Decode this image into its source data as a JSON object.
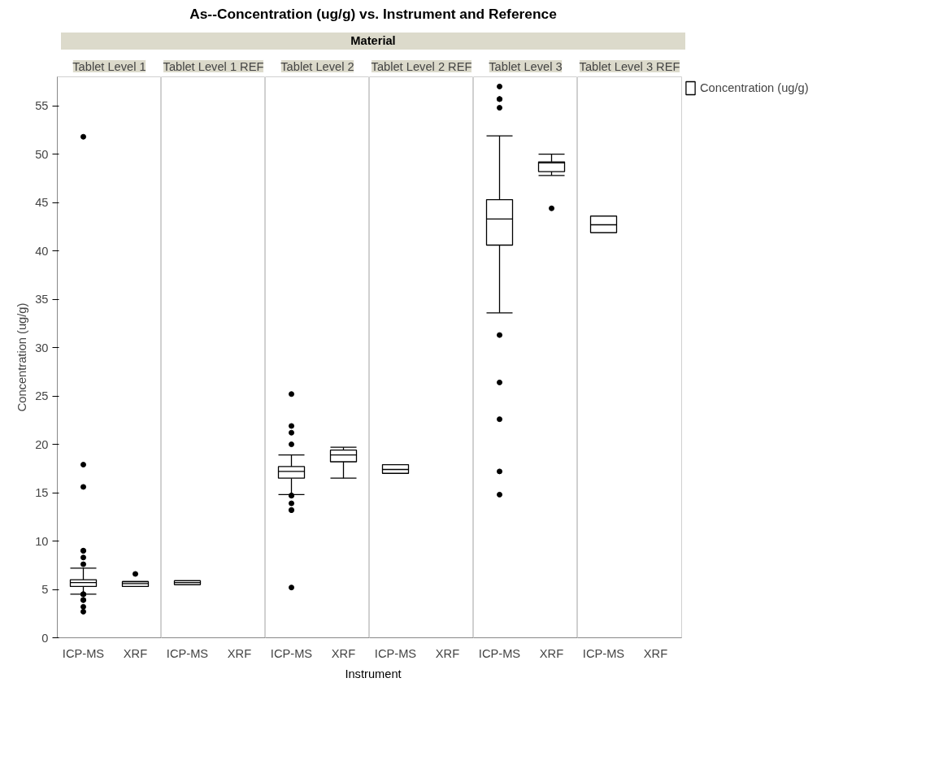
{
  "chart_data": [
    {
      "type": "box",
      "title": "Tablet Level 1",
      "ylabel": "Concentration (ug/g)",
      "annotations": [
        "As--Concentration (ug/g) vs. Instrument and Reference",
        "Material",
        "Instrument"
      ],
      "categories": [
        "ICP-MS",
        "XRF"
      ],
      "ylim": [
        0,
        58
      ],
      "yticks": [
        0,
        5,
        10,
        15,
        20,
        25,
        30,
        35,
        40,
        45,
        50,
        55
      ],
      "grid": false,
      "series": [
        {
          "color": "#000000",
          "boxes": [
            {
              "low": 4.5,
              "q1": 5.3,
              "median": 5.7,
              "q3": 6.0,
              "high": 7.2,
              "outliers": [
                51.8,
                17.9,
                15.6,
                9.0,
                9.0,
                8.3,
                7.6,
                4.5,
                4.5,
                4.5,
                3.9,
                3.9,
                3.2,
                2.7
              ]
            },
            {
              "low": 5.3,
              "q1": 5.3,
              "median": 5.6,
              "q3": 5.8,
              "high": 5.8,
              "outliers": [
                6.6
              ]
            }
          ]
        }
      ]
    },
    {
      "type": "box",
      "title": "Tablet Level 1 REF",
      "categories": [
        "ICP-MS",
        "XRF"
      ],
      "ylim": [
        0,
        58
      ],
      "yticks": [
        0,
        5,
        10,
        15,
        20,
        25,
        30,
        35,
        40,
        45,
        50,
        55
      ],
      "tick_labels": "x",
      "grid": false,
      "series": [
        {
          "color": "#000000",
          "boxes": [
            {
              "low": 5.5,
              "q1": 5.5,
              "median": 5.7,
              "q3": 5.9,
              "high": 5.9
            },
            null
          ]
        }
      ]
    },
    {
      "type": "box",
      "title": "Tablet Level 2",
      "categories": [
        "ICP-MS",
        "XRF"
      ],
      "ylim": [
        0,
        58
      ],
      "yticks": [
        0,
        5,
        10,
        15,
        20,
        25,
        30,
        35,
        40,
        45,
        50,
        55
      ],
      "tick_labels": "x",
      "grid": false,
      "series": [
        {
          "color": "#000000",
          "boxes": [
            {
              "low": 14.8,
              "q1": 16.5,
              "median": 17.2,
              "q3": 17.7,
              "high": 18.9,
              "outliers": [
                25.2,
                21.9,
                21.2,
                20.0,
                14.7,
                14.7,
                13.9,
                13.2,
                13.2,
                5.2
              ]
            },
            {
              "low": 16.5,
              "q1": 18.2,
              "median": 18.9,
              "q3": 19.4,
              "high": 19.7
            }
          ]
        }
      ]
    },
    {
      "type": "box",
      "title": "Tablet Level 2 REF",
      "categories": [
        "ICP-MS",
        "XRF"
      ],
      "ylim": [
        0,
        58
      ],
      "yticks": [
        0,
        5,
        10,
        15,
        20,
        25,
        30,
        35,
        40,
        45,
        50,
        55
      ],
      "tick_labels": "x",
      "grid": false,
      "series": [
        {
          "color": "#000000",
          "boxes": [
            {
              "low": 17.0,
              "q1": 17.0,
              "median": 17.4,
              "q3": 17.9,
              "high": 17.9
            },
            null
          ]
        }
      ]
    },
    {
      "type": "box",
      "title": "Tablet Level 3",
      "categories": [
        "ICP-MS",
        "XRF"
      ],
      "ylim": [
        0,
        58
      ],
      "yticks": [
        0,
        5,
        10,
        15,
        20,
        25,
        30,
        35,
        40,
        45,
        50,
        55
      ],
      "tick_labels": "x",
      "grid": false,
      "series": [
        {
          "color": "#000000",
          "boxes": [
            {
              "low": 33.6,
              "q1": 40.6,
              "median": 43.3,
              "q3": 45.3,
              "high": 51.9,
              "outliers": [
                57.0,
                55.7,
                55.7,
                54.8,
                31.3,
                26.4,
                22.6,
                17.2,
                14.8
              ]
            },
            {
              "low": 47.8,
              "q1": 48.2,
              "median": 49.1,
              "q3": 49.2,
              "high": 50.0,
              "outliers": [
                44.4
              ]
            }
          ]
        }
      ]
    },
    {
      "type": "box",
      "title": "Tablet Level 3 REF",
      "categories": [
        "ICP-MS",
        "XRF"
      ],
      "ylim": [
        0,
        58
      ],
      "yticks": [
        0,
        5,
        10,
        15,
        20,
        25,
        30,
        35,
        40,
        45,
        50,
        55
      ],
      "tick_labels": "x",
      "grid": false,
      "legend": "right",
      "series": [
        {
          "name": "Concentration (ug/g)",
          "color": "#000000",
          "boxes": [
            {
              "low": 41.9,
              "q1": 41.9,
              "median": 42.7,
              "q3": 43.6,
              "high": 43.6
            },
            null
          ]
        }
      ]
    }
  ]
}
